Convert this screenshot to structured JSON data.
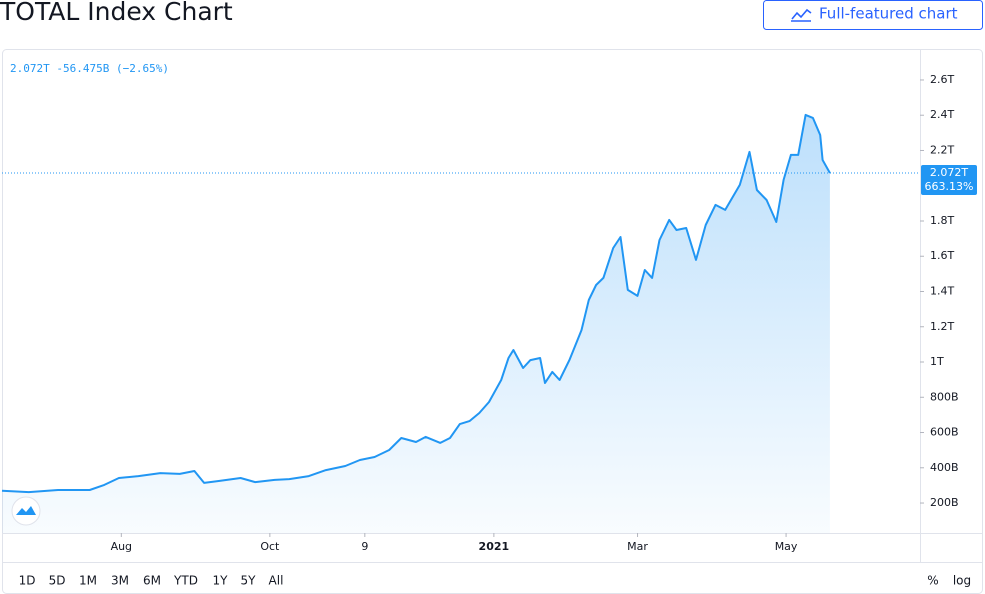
{
  "header": {
    "title": "TOTAL Index Chart",
    "button": "Full-featured chart"
  },
  "chart_data": {
    "type": "line",
    "legend": "2.072T -56.475B (−2.65%)",
    "last_value_label": "2.072T",
    "last_change_label": "663.13%",
    "x": [
      -49,
      -38,
      -26,
      -13,
      -7,
      -1,
      7,
      16,
      24,
      30,
      34,
      40,
      49,
      55,
      63,
      69,
      77,
      84,
      92,
      98,
      104,
      110,
      115,
      121,
      125,
      131,
      135,
      139,
      143,
      147,
      151,
      156,
      159,
      161,
      165,
      168,
      172,
      174,
      177,
      180,
      184,
      189,
      192,
      195,
      198,
      202,
      205,
      208,
      212,
      215,
      218,
      221,
      225,
      228,
      232,
      236,
      240,
      244,
      248,
      254,
      258,
      261,
      265,
      269,
      272,
      275,
      278,
      281,
      284,
      287,
      288,
      291
    ],
    "series": [
      {
        "color": "#2196f3",
        "values": [
          270,
          262,
          274,
          274,
          303,
          342,
          353,
          370,
          365,
          382,
          314,
          325,
          342,
          319,
          331,
          336,
          353,
          387,
          410,
          444,
          461,
          501,
          569,
          546,
          575,
          541,
          569,
          648,
          665,
          711,
          773,
          898,
          1023,
          1068,
          966,
          1011,
          1023,
          881,
          944,
          898,
          1011,
          1181,
          1352,
          1437,
          1477,
          1647,
          1709,
          1409,
          1375,
          1522,
          1477,
          1692,
          1806,
          1749,
          1760,
          1579,
          1777,
          1891,
          1863,
          2005,
          2192,
          1976,
          1919,
          1794,
          2033,
          2175,
          2175,
          2402,
          2385,
          2288,
          2146,
          2072
        ]
      }
    ],
    "xlim": [
      -49,
      328
    ],
    "xticks": [
      {
        "value": 0,
        "label": "Aug"
      },
      {
        "value": 61,
        "label": "Oct"
      },
      {
        "value": 100,
        "label": "9"
      },
      {
        "value": 153,
        "label": "2021"
      },
      {
        "value": 212,
        "label": "Mar"
      },
      {
        "value": 273,
        "label": "May"
      }
    ],
    "ylim": [
      30,
      2770
    ],
    "yticks": [
      {
        "value": 200,
        "label": "200B"
      },
      {
        "value": 400,
        "label": "400B"
      },
      {
        "value": 600,
        "label": "600B"
      },
      {
        "value": 800,
        "label": "800B"
      },
      {
        "value": 1000,
        "label": "1T"
      },
      {
        "value": 1200,
        "label": "1.2T"
      },
      {
        "value": 1400,
        "label": "1.4T"
      },
      {
        "value": 1600,
        "label": "1.6T"
      },
      {
        "value": 1800,
        "label": "1.8T"
      },
      {
        "value": 2200,
        "label": "2.2T"
      },
      {
        "value": 2400,
        "label": "2.4T"
      },
      {
        "value": 2600,
        "label": "2.6T"
      }
    ]
  },
  "toolbar": {
    "ranges": [
      "1D",
      "5D",
      "1M",
      "3M",
      "6M",
      "YTD",
      "1Y",
      "5Y",
      "All"
    ],
    "options": [
      "%",
      "log"
    ]
  }
}
